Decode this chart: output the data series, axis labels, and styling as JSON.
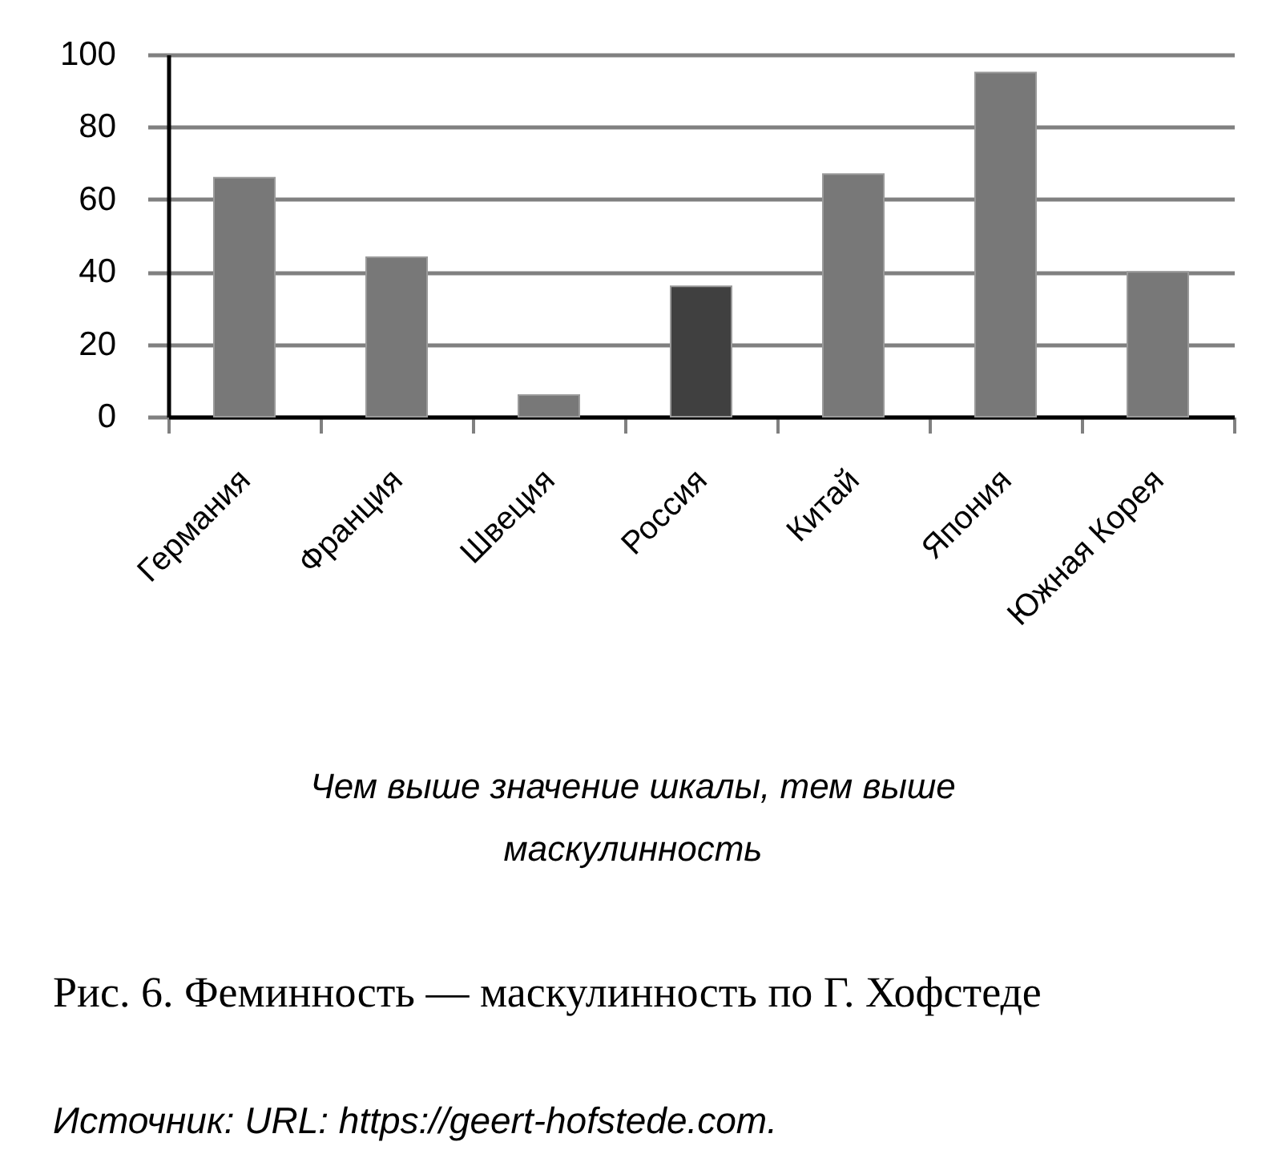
{
  "chart_data": {
    "type": "bar",
    "title": "Рис. 6. Феминность — маскулинность по Г. Хофстеде",
    "xlabel": "Чем выше значение шкалы, тем выше маскулинность",
    "annotations": [
      "Источник: URL: https://geert-hofstede.com."
    ],
    "categories": [
      "Германия",
      "Франция",
      "Швеция",
      "Россия",
      "Китай",
      "Япония",
      "Южная Корея"
    ],
    "values": [
      66,
      44,
      6,
      36,
      67,
      95,
      40
    ],
    "colors": [
      "#787878",
      "#787878",
      "#787878",
      "#404040",
      "#787878",
      "#787878",
      "#787878"
    ],
    "ylim": [
      0,
      100
    ],
    "yticks": [
      0,
      20,
      40,
      60,
      80,
      100
    ],
    "grid": "y"
  }
}
